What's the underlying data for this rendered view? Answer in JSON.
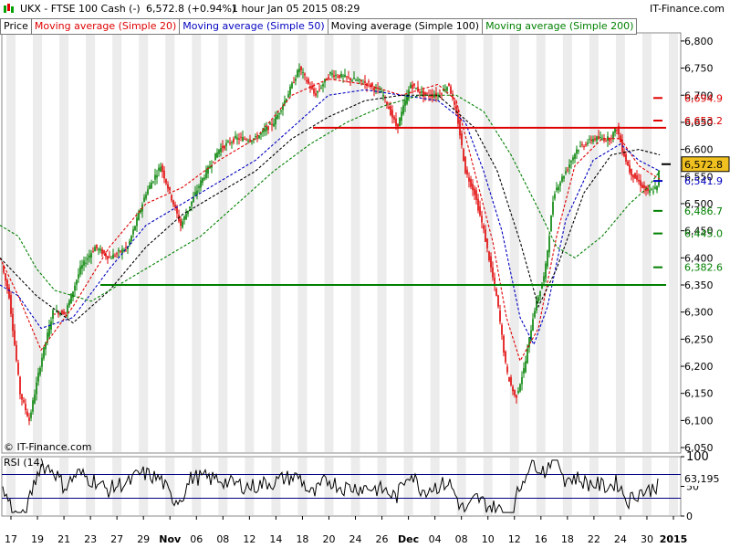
{
  "header": {
    "symbol": "UKX - FTSE 100 Cash (-)",
    "price_change": "6,572.8 (+0.94%)",
    "timeframe_date": "1 hour  Jan 05 2015 08:29",
    "brand": "IT-Finance.com",
    "watermark": "© IT-Finance.com"
  },
  "legend": [
    {
      "label": "Price",
      "color": "#000000"
    },
    {
      "label": "Moving average (Simple 20)",
      "color": "#e00000"
    },
    {
      "label": "Moving average (Simple 50)",
      "color": "#0000c0"
    },
    {
      "label": "Moving average (Simple 100)",
      "color": "#000000"
    },
    {
      "label": "Moving average (Simple 200)",
      "color": "#008000"
    }
  ],
  "colors": {
    "up_candle": "#008000",
    "down_candle": "#e00000",
    "resistance_line": "#e00000",
    "support_line": "#008000",
    "current_price_bg": "#f0c020",
    "rsi_line": "#000000",
    "rsi_bounds": "#000080"
  },
  "chart_data": [
    {
      "type": "candlestick",
      "title": "UKX - FTSE 100 Cash (-)",
      "timeframe": "1 hour",
      "x_tick_labels": [
        "17",
        "19",
        "21",
        "23",
        "27",
        "29",
        "Nov",
        "06",
        "08",
        "12",
        "14",
        "18",
        "20",
        "24",
        "26",
        "Dec",
        "04",
        "08",
        "10",
        "12",
        "16",
        "18",
        "22",
        "24",
        "30",
        "2015"
      ],
      "y_tick_labels": [
        "6,800",
        "6,750",
        "6,700",
        "6,650",
        "6,600",
        "6,550",
        "6,500",
        "6,450",
        "6,400",
        "6,350",
        "6,300",
        "6,250",
        "6,200",
        "6,150",
        "6,100",
        "6,050"
      ],
      "ylim": [
        6040,
        6815
      ],
      "price_path": [
        [
          0,
          6400
        ],
        [
          10,
          6330
        ],
        [
          22,
          6150
        ],
        [
          32,
          6100
        ],
        [
          45,
          6210
        ],
        [
          58,
          6300
        ],
        [
          72,
          6300
        ],
        [
          88,
          6380
        ],
        [
          104,
          6420
        ],
        [
          120,
          6400
        ],
        [
          140,
          6420
        ],
        [
          160,
          6520
        ],
        [
          176,
          6570
        ],
        [
          198,
          6460
        ],
        [
          220,
          6540
        ],
        [
          240,
          6600
        ],
        [
          258,
          6620
        ],
        [
          280,
          6620
        ],
        [
          300,
          6650
        ],
        [
          315,
          6700
        ],
        [
          328,
          6750
        ],
        [
          345,
          6700
        ],
        [
          362,
          6740
        ],
        [
          385,
          6730
        ],
        [
          405,
          6720
        ],
        [
          420,
          6700
        ],
        [
          435,
          6640
        ],
        [
          450,
          6720
        ],
        [
          465,
          6700
        ],
        [
          480,
          6700
        ],
        [
          492,
          6720
        ],
        [
          502,
          6650
        ],
        [
          510,
          6560
        ],
        [
          520,
          6520
        ],
        [
          530,
          6450
        ],
        [
          545,
          6320
        ],
        [
          555,
          6190
        ],
        [
          565,
          6140
        ],
        [
          575,
          6200
        ],
        [
          585,
          6300
        ],
        [
          597,
          6370
        ],
        [
          607,
          6520
        ],
        [
          620,
          6560
        ],
        [
          632,
          6600
        ],
        [
          650,
          6620
        ],
        [
          668,
          6620
        ],
        [
          676,
          6640
        ],
        [
          682,
          6600
        ],
        [
          690,
          6560
        ],
        [
          700,
          6540
        ],
        [
          710,
          6520
        ],
        [
          720,
          6530
        ],
        [
          723,
          6573
        ]
      ],
      "ma20_path": [
        [
          0,
          6400
        ],
        [
          20,
          6330
        ],
        [
          45,
          6230
        ],
        [
          80,
          6310
        ],
        [
          120,
          6420
        ],
        [
          160,
          6500
        ],
        [
          200,
          6530
        ],
        [
          240,
          6580
        ],
        [
          280,
          6620
        ],
        [
          320,
          6700
        ],
        [
          360,
          6730
        ],
        [
          400,
          6720
        ],
        [
          440,
          6700
        ],
        [
          480,
          6720
        ],
        [
          500,
          6690
        ],
        [
          520,
          6560
        ],
        [
          540,
          6430
        ],
        [
          555,
          6290
        ],
        [
          570,
          6210
        ],
        [
          590,
          6270
        ],
        [
          610,
          6440
        ],
        [
          630,
          6570
        ],
        [
          660,
          6620
        ],
        [
          680,
          6620
        ],
        [
          700,
          6570
        ],
        [
          723,
          6545
        ]
      ],
      "ma50_path": [
        [
          0,
          6350
        ],
        [
          20,
          6330
        ],
        [
          45,
          6270
        ],
        [
          80,
          6290
        ],
        [
          120,
          6380
        ],
        [
          160,
          6460
        ],
        [
          200,
          6500
        ],
        [
          240,
          6540
        ],
        [
          280,
          6580
        ],
        [
          320,
          6640
        ],
        [
          360,
          6700
        ],
        [
          400,
          6710
        ],
        [
          440,
          6700
        ],
        [
          480,
          6690
        ],
        [
          510,
          6650
        ],
        [
          530,
          6560
        ],
        [
          550,
          6450
        ],
        [
          570,
          6290
        ],
        [
          585,
          6240
        ],
        [
          600,
          6310
        ],
        [
          620,
          6470
        ],
        [
          650,
          6580
        ],
        [
          680,
          6610
        ],
        [
          700,
          6580
        ],
        [
          723,
          6560
        ]
      ],
      "ma100_path": [
        [
          0,
          6400
        ],
        [
          40,
          6330
        ],
        [
          80,
          6280
        ],
        [
          120,
          6340
        ],
        [
          160,
          6420
        ],
        [
          200,
          6480
        ],
        [
          240,
          6520
        ],
        [
          280,
          6560
        ],
        [
          320,
          6620
        ],
        [
          360,
          6660
        ],
        [
          400,
          6690
        ],
        [
          440,
          6700
        ],
        [
          480,
          6700
        ],
        [
          520,
          6640
        ],
        [
          545,
          6560
        ],
        [
          570,
          6430
        ],
        [
          590,
          6310
        ],
        [
          610,
          6380
        ],
        [
          640,
          6520
        ],
        [
          670,
          6590
        ],
        [
          700,
          6600
        ],
        [
          723,
          6590
        ]
      ],
      "ma200_path": [
        [
          0,
          6460
        ],
        [
          20,
          6440
        ],
        [
          40,
          6380
        ],
        [
          60,
          6340
        ],
        [
          100,
          6320
        ],
        [
          140,
          6360
        ],
        [
          180,
          6400
        ],
        [
          220,
          6440
        ],
        [
          260,
          6500
        ],
        [
          300,
          6560
        ],
        [
          340,
          6610
        ],
        [
          380,
          6650
        ],
        [
          420,
          6680
        ],
        [
          460,
          6700
        ],
        [
          500,
          6700
        ],
        [
          530,
          6670
        ],
        [
          560,
          6590
        ],
        [
          590,
          6490
        ],
        [
          610,
          6420
        ],
        [
          630,
          6400
        ],
        [
          660,
          6440
        ],
        [
          690,
          6500
        ],
        [
          710,
          6530
        ],
        [
          723,
          6560
        ]
      ],
      "resistance": 6640,
      "support": 6350,
      "levels": [
        {
          "label": "6,694.9",
          "value": 6694.9,
          "color": "#e00000"
        },
        {
          "label": "6,653.2",
          "value": 6653.2,
          "color": "#e00000"
        },
        {
          "label": "6,572.8",
          "value": 6572.8,
          "color": "#000000",
          "current": true
        },
        {
          "label": "6,541.9",
          "value": 6541.9,
          "color": "#0000c0"
        },
        {
          "label": "6,486.7",
          "value": 6486.7,
          "color": "#008000"
        },
        {
          "label": "6,445.0",
          "value": 6445.0,
          "color": "#008000"
        },
        {
          "label": "6,382.6",
          "value": 6382.6,
          "color": "#008000"
        }
      ]
    },
    {
      "type": "line",
      "title": "RSI (14)",
      "y_tick_labels": [
        "100",
        "50",
        "0"
      ],
      "ylim": [
        0,
        100
      ],
      "upper_bound": 70,
      "lower_bound": 30,
      "last_value": "63,195"
    }
  ]
}
